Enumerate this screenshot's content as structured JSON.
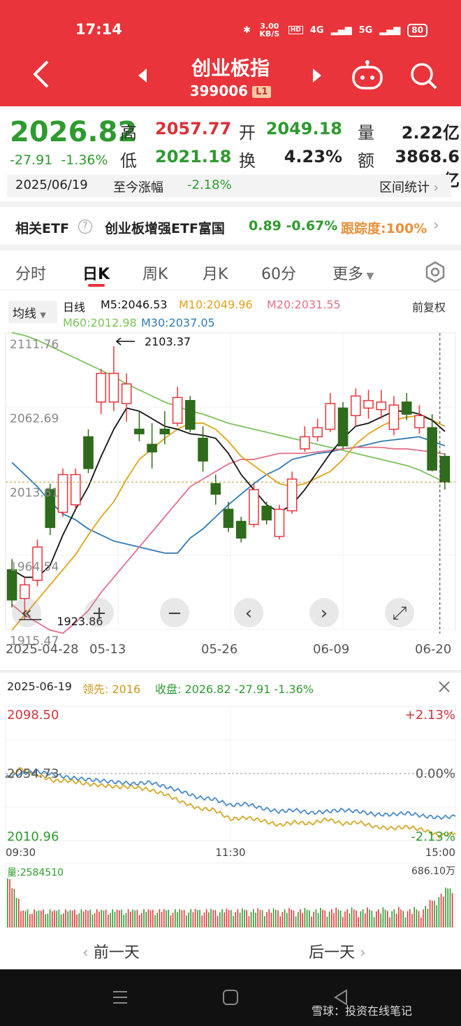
{
  "status": {
    "time": "17:14",
    "speed": "3.00 KB/S",
    "net1": "4G",
    "net2": "5G",
    "battery": "80"
  },
  "header": {
    "title": "创业板指",
    "code": "399006",
    "level": "L1"
  },
  "quote": {
    "price": "2026.82",
    "change": "-27.91",
    "change_pct": "-1.36%",
    "high_label": "高",
    "high": "2057.77",
    "low_label": "低",
    "low": "2021.18",
    "open_label": "开",
    "open": "2049.18",
    "turnover_label": "换",
    "turnover": "4.23%",
    "volume_label": "量",
    "volume": "2.22亿",
    "amount_label": "额",
    "amount": "3868.6亿",
    "date": "2025/06/19",
    "since_label": "至今涨幅",
    "since_pct": "-2.18%",
    "interval_label": "区间统计"
  },
  "etf": {
    "label": "相关ETF",
    "name": "创业板增强ETF富国",
    "price": "0.89",
    "pct": "-0.67%",
    "tracking": "跟踪度:100%"
  },
  "tabs": [
    {
      "label": "分时"
    },
    {
      "label": "日K"
    },
    {
      "label": "周K"
    },
    {
      "label": "月K"
    },
    {
      "label": "60分"
    },
    {
      "label": "更多"
    }
  ],
  "kline": {
    "ma_select": "均线",
    "period": "日线",
    "m5": "M5:2046.53",
    "m10": "M10:2049.96",
    "m20": "M20:2031.55",
    "m60": "M60:2012.98",
    "m30": "M30:2037.05",
    "adjust": "前复权",
    "y_labels": [
      "2111.76",
      "2062.69",
      "2013.61",
      "1964.54",
      "1915.47"
    ],
    "x_labels": [
      "2025-04-28",
      "05-13",
      "05-26",
      "06-09",
      "06-20"
    ],
    "max_label": "2103.37",
    "min_label": "1923.86",
    "colors": {
      "up": "#e8343a",
      "down": "#2e6b1c",
      "m5": "#111111",
      "m10": "#e0a21a",
      "m20": "#e07088",
      "m30": "#2f79b5",
      "m60": "#7cc35a"
    }
  },
  "chart_data": [
    {
      "type": "candlestick",
      "title": "",
      "x_range": [
        "2025-04-28",
        "2025-06-20"
      ],
      "ylim": [
        1915.47,
        2111.76
      ],
      "candles": [
        [
          1955,
          1935,
          1962,
          1930
        ],
        [
          1936,
          1945,
          1950,
          1922
        ],
        [
          1948,
          1970,
          1975,
          1944
        ],
        [
          2008,
          1983,
          2012,
          1978
        ],
        [
          1993,
          2018,
          2022,
          1990
        ],
        [
          1998,
          2018,
          2022,
          1995
        ],
        [
          2043,
          2022,
          2048,
          2019
        ],
        [
          2066,
          2085,
          2088,
          2058
        ],
        [
          2066,
          2085,
          2103,
          2060
        ],
        [
          2065,
          2078,
          2085,
          2053
        ],
        [
          2048,
          2045,
          2060,
          2040
        ],
        [
          2038,
          2033,
          2052,
          2022
        ],
        [
          2048,
          2045,
          2060,
          2038
        ],
        [
          2052,
          2069,
          2076,
          2050
        ],
        [
          2067,
          2048,
          2070,
          2046
        ],
        [
          2042,
          2027,
          2050,
          2020
        ],
        [
          2012,
          2005,
          2018,
          1998
        ],
        [
          1995,
          1983,
          2000,
          1980
        ],
        [
          1987,
          1976,
          1990,
          1973
        ],
        [
          1985,
          2008,
          2012,
          1983
        ],
        [
          1997,
          1988,
          2000,
          1985
        ],
        [
          1977,
          1995,
          1998,
          1975
        ],
        [
          1994,
          2015,
          2020,
          1992
        ],
        [
          2035,
          2043,
          2050,
          2033
        ],
        [
          2043,
          2049,
          2055,
          2040
        ],
        [
          2048,
          2065,
          2072,
          2046
        ],
        [
          2062,
          2037,
          2066,
          2035
        ],
        [
          2057,
          2070,
          2075,
          2050
        ],
        [
          2062,
          2067,
          2074,
          2055
        ],
        [
          2061,
          2066,
          2074,
          2055
        ],
        [
          2048,
          2064,
          2070,
          2044
        ],
        [
          2066,
          2058,
          2072,
          2054
        ],
        [
          2049,
          2057,
          2064,
          2045
        ],
        [
          2049,
          2021,
          2058,
          2020
        ],
        [
          2030,
          2013,
          2032,
          2008
        ]
      ],
      "ma5": [
        1955,
        1950,
        1950,
        1958,
        1978,
        1995,
        2010,
        2030,
        2048,
        2062,
        2060,
        2055,
        2050,
        2048,
        2045,
        2044,
        2042,
        2032,
        2018,
        2008,
        1998,
        1993,
        1998,
        2008,
        2020,
        2032,
        2042,
        2050,
        2052,
        2056,
        2060,
        2060,
        2058,
        2054,
        2046.53
      ],
      "ma10": [
        1915,
        1925,
        1935,
        1945,
        1955,
        1965,
        1978,
        1990,
        2000,
        2015,
        2028,
        2035,
        2042,
        2048,
        2052,
        2052,
        2048,
        2040,
        2030,
        2024,
        2018,
        2012,
        2010,
        2012,
        2016,
        2020,
        2028,
        2038,
        2045,
        2050,
        2054,
        2056,
        2057,
        2054,
        2049.96
      ],
      "ma20": [
        1932,
        1925,
        1920,
        1915,
        1913,
        1920,
        1928,
        1940,
        1950,
        1960,
        1970,
        1980,
        1990,
        2000,
        2010,
        2015,
        2020,
        2025,
        2028,
        2028,
        2030,
        2032,
        2032,
        2032,
        2033,
        2034,
        2035,
        2036,
        2036,
        2036,
        2035,
        2035,
        2034,
        2033,
        2031.55
      ],
      "ma30": [
        2026,
        2018,
        2010,
        2000,
        1992,
        1988,
        1982,
        1978,
        1974,
        1972,
        1970,
        1968,
        1966,
        1966,
        1976,
        1982,
        1990,
        1998,
        2005,
        2012,
        2018,
        2022,
        2028,
        2030,
        2032,
        2033,
        2035,
        2036,
        2038,
        2040,
        2041,
        2042,
        2043,
        2040,
        2037.05
      ],
      "ma60": [
        2112,
        2110,
        2107,
        2103,
        2099,
        2095,
        2091,
        2087,
        2083,
        2078,
        2074,
        2070,
        2066,
        2063,
        2060,
        2058,
        2055,
        2052,
        2050,
        2048,
        2046,
        2044,
        2042,
        2040,
        2038,
        2036,
        2034,
        2032,
        2030,
        2028,
        2026,
        2024,
        2021,
        2017,
        2012.98
      ]
    },
    {
      "type": "line",
      "title": "",
      "date": "2025-06-19",
      "x_labels": [
        "09:30",
        "11:30",
        "15:00"
      ],
      "y_labels": [
        "2098.50",
        "2054.73",
        "2010.96"
      ],
      "pct_labels": [
        "+2.13%",
        "0.00%",
        "-2.13%"
      ],
      "ylim": [
        2010.96,
        2098.5
      ],
      "series": [
        {
          "name": "收盘",
          "values": [
            2052,
            2055,
            2056,
            2054,
            2052,
            2051,
            2050,
            2049,
            2048,
            2049,
            2046,
            2043,
            2039,
            2038,
            2034,
            2035,
            2032,
            2030,
            2031,
            2029,
            2030,
            2031,
            2030,
            2028,
            2028,
            2029,
            2027,
            2026,
            2026.82
          ]
        },
        {
          "name": "领先",
          "values": [
            2052,
            2058,
            2054,
            2050,
            2050,
            2048,
            2047,
            2046,
            2046,
            2044,
            2041,
            2036,
            2032,
            2031,
            2025,
            2026,
            2024,
            2021,
            2023,
            2022,
            2025,
            2022,
            2023,
            2020,
            2019,
            2020,
            2018,
            2014,
            2016
          ]
        }
      ]
    }
  ],
  "intraday": {
    "date": "2025-06-19",
    "lead_label": "领先: 2016",
    "close_label": "收盘: 2026.82 -27.91 -1.36%",
    "colors": {
      "close": "#4a8bc8",
      "lead": "#d4a82a"
    },
    "volume_label": "量:2584510",
    "volume_max": "686.10万",
    "prev_day": "前一天",
    "next_day": "后一天"
  },
  "navbar": {
    "watermark": "雪球：投资在线笔记"
  }
}
